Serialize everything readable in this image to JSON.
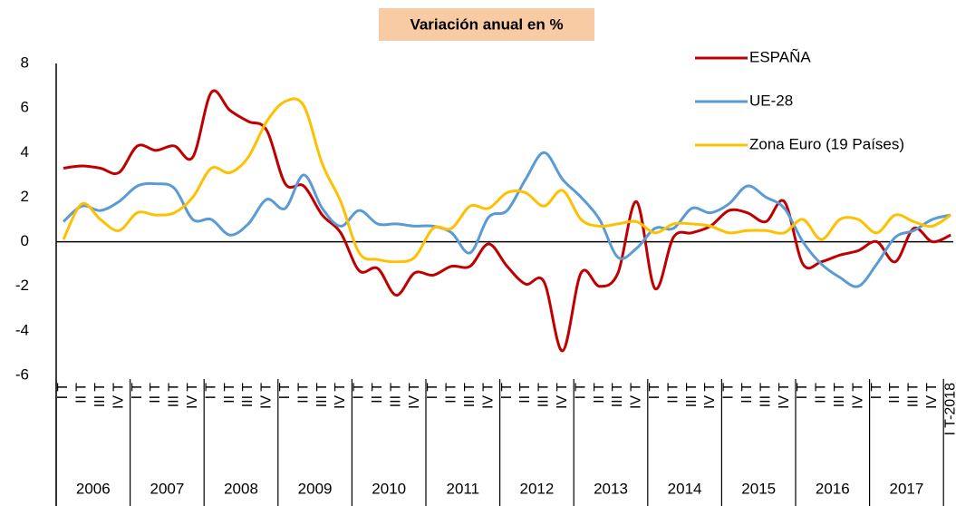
{
  "chart_data": {
    "type": "line",
    "title": "Variación anual en %",
    "categories": [
      "I T",
      "II T",
      "III T",
      "IV T",
      "I T",
      "II T",
      "III T",
      "IV T",
      "I T",
      "II T",
      "III T",
      "IV T",
      "I T",
      "II T",
      "III T",
      "IV T",
      "I T",
      "II T",
      "III T",
      "IV T",
      "I T",
      "II T",
      "III T",
      "IV T",
      "I T",
      "II T",
      "III T",
      "IV T",
      "I T",
      "II T",
      "III T",
      "IV T",
      "I T",
      "II T",
      "III T",
      "IV T",
      "I T",
      "II T",
      "III T",
      "IV T",
      "I T",
      "II T",
      "III T",
      "IV T",
      "I T",
      "II T",
      "III T",
      "IV T",
      "I T-2018"
    ],
    "years": [
      "2006",
      "2007",
      "2008",
      "2009",
      "2010",
      "2011",
      "2012",
      "2013",
      "2014",
      "2015",
      "2016",
      "2017"
    ],
    "series": [
      {
        "name": "ESPAÑA",
        "color": "#c00000",
        "values": [
          3.3,
          3.4,
          3.3,
          3.1,
          4.3,
          4.1,
          4.3,
          3.8,
          6.7,
          5.9,
          5.4,
          5.0,
          2.6,
          2.5,
          1.2,
          0.4,
          -1.3,
          -1.2,
          -2.4,
          -1.4,
          -1.5,
          -1.1,
          -1.1,
          -0.1,
          -1.1,
          -1.9,
          -1.8,
          -4.9,
          -1.4,
          -2.0,
          -1.4,
          1.8,
          -2.1,
          0.2,
          0.4,
          0.7,
          1.4,
          1.3,
          0.9,
          1.8,
          -1.0,
          -0.9,
          -0.6,
          -0.4,
          0.0,
          -0.9,
          0.6,
          0.0,
          0.3
        ]
      },
      {
        "name": "UE-28",
        "color": "#5b9bd5",
        "values": [
          0.9,
          1.6,
          1.4,
          1.8,
          2.5,
          2.6,
          2.4,
          1.0,
          1.0,
          0.3,
          0.8,
          1.9,
          1.5,
          3.0,
          1.5,
          0.7,
          1.4,
          0.8,
          0.8,
          0.7,
          0.7,
          0.4,
          -0.5,
          1.1,
          1.4,
          2.8,
          4.0,
          2.8,
          2.0,
          1.0,
          -0.7,
          -0.3,
          0.6,
          0.6,
          1.5,
          1.3,
          1.7,
          2.5,
          2.0,
          1.5,
          0.0,
          -1.0,
          -1.6,
          -2.0,
          -1.0,
          0.2,
          0.5,
          1.0,
          1.2
        ]
      },
      {
        "name": "Zona Euro (19 Países)",
        "color": "#ffc000",
        "values": [
          0.1,
          1.7,
          1.0,
          0.5,
          1.3,
          1.2,
          1.3,
          2.0,
          3.3,
          3.1,
          3.8,
          5.4,
          6.3,
          6.1,
          3.5,
          1.8,
          -0.5,
          -0.8,
          -0.9,
          -0.7,
          0.6,
          0.6,
          1.6,
          1.5,
          2.2,
          2.2,
          1.6,
          2.3,
          1.0,
          0.7,
          0.8,
          0.9,
          0.4,
          0.8,
          0.8,
          0.7,
          0.4,
          0.5,
          0.5,
          0.4,
          1.0,
          0.1,
          1.0,
          1.0,
          0.4,
          1.2,
          0.9,
          0.7,
          1.2
        ]
      }
    ],
    "ylim": [
      -6,
      8
    ],
    "yticks": [
      -6,
      -4,
      -2,
      0,
      2,
      4,
      6,
      8
    ],
    "negative_tick_color": "#ff0000",
    "title_background": "#f8cba4"
  }
}
